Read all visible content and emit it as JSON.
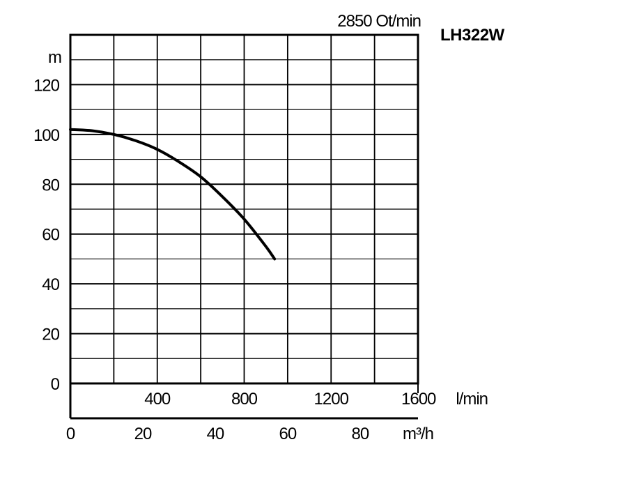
{
  "chart_data": {
    "type": "line",
    "title": "LH322W",
    "speed_label": "2850 Ot/min",
    "ylabel": "m",
    "ylim": [
      0,
      140
    ],
    "y_ticks": [
      0,
      20,
      40,
      60,
      80,
      100,
      120
    ],
    "x_lmin": {
      "unit": "l/min",
      "range": [
        0,
        1600
      ],
      "tick_labels": [
        "400",
        "800",
        "1200",
        "1600"
      ],
      "tick_values": [
        400,
        800,
        1200,
        1600
      ]
    },
    "x_m3h": {
      "unit": "m³/h",
      "range": [
        0,
        96
      ],
      "tick_labels": [
        "0",
        "20",
        "40",
        "60",
        "80"
      ],
      "tick_values": [
        0,
        20,
        40,
        60,
        80
      ]
    },
    "grid": true,
    "series": [
      {
        "x_lmin": [
          0,
          100,
          200,
          300,
          400,
          500,
          600,
          700,
          800,
          900,
          940
        ],
        "y": [
          102,
          101.5,
          100,
          97.5,
          94,
          89,
          83,
          75,
          66,
          55,
          50
        ]
      }
    ]
  }
}
